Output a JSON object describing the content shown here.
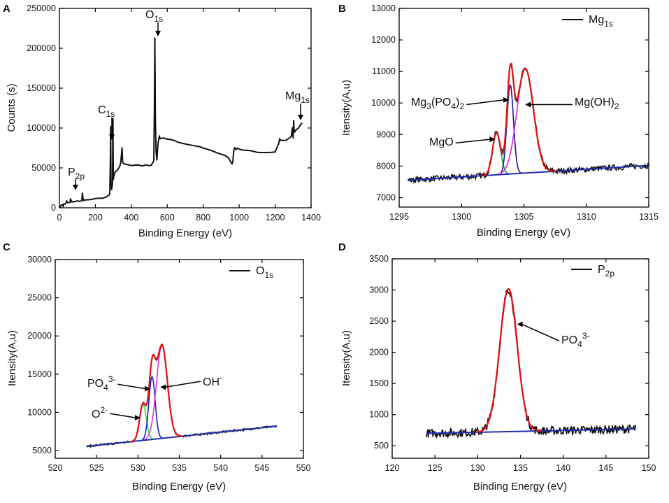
{
  "figure": {
    "panel_count": 4
  },
  "colors": {
    "raw": "#111111",
    "envelope": "#e01010",
    "background": "#1f2fb0",
    "mgo": "#18b018",
    "mg3po42": "#141c9a",
    "mgoh2": "#e020e0",
    "o2": "#30e030",
    "po4_o": "#1420c8",
    "oh": "#ec2cec",
    "arrow": "#000000"
  },
  "chart_data": [
    {
      "panel": "A",
      "type": "line",
      "xlabel": "Binding Energy (eV)",
      "ylabel": "Counts (s)",
      "xlim": [
        0,
        1400
      ],
      "ylim": [
        0,
        250000
      ],
      "xticks": [
        0,
        200,
        400,
        600,
        800,
        1000,
        1200,
        1400
      ],
      "yticks": [
        0,
        50000,
        100000,
        150000,
        200000,
        250000
      ],
      "series": [
        {
          "name": "survey",
          "color": "#111111",
          "x": [
            0,
            10,
            20,
            21,
            25,
            35,
            40,
            45,
            60,
            61,
            70,
            90,
            100,
            110,
            125,
            128,
            132,
            135,
            140,
            180,
            200,
            220,
            240,
            260,
            270,
            280,
            283,
            285,
            287,
            290,
            295,
            298,
            300,
            302,
            305,
            310,
            320,
            330,
            340,
            345,
            348,
            350,
            352,
            356,
            360,
            380,
            400,
            420,
            440,
            460,
            480,
            500,
            510,
            520,
            525,
            528,
            531,
            534,
            538,
            542,
            548,
            552,
            556,
            560,
            580,
            600,
            620,
            640,
            660,
            680,
            700,
            740,
            780,
            800,
            840,
            880,
            900,
            920,
            940,
            960,
            965,
            970,
            975,
            980,
            985,
            990,
            1000,
            1020,
            1060,
            1100,
            1140,
            1180,
            1200,
            1210,
            1220,
            1225,
            1230,
            1260,
            1280,
            1290,
            1296,
            1300,
            1303,
            1306,
            1310,
            1315,
            1330,
            1350
          ],
          "y": [
            1000,
            2500,
            4500,
            2000,
            4500,
            5000,
            9000,
            6000,
            6500,
            11000,
            7000,
            7800,
            8200,
            8500,
            9000,
            18000,
            10500,
            9500,
            9500,
            10500,
            11000,
            11500,
            12500,
            13500,
            14500,
            16500,
            55000,
            102000,
            30000,
            22000,
            30000,
            112000,
            35000,
            39000,
            42000,
            45000,
            47000,
            50000,
            54000,
            66000,
            75000,
            66000,
            58000,
            56000,
            55000,
            54000,
            53000,
            54000,
            53000,
            53000,
            54000,
            53000,
            53000,
            56000,
            59000,
            120000,
            213000,
            110000,
            70000,
            60000,
            80000,
            85000,
            90000,
            87000,
            87000,
            86000,
            85000,
            84000,
            82000,
            81000,
            80000,
            78000,
            76000,
            75000,
            72000,
            69000,
            67000,
            66000,
            63000,
            55000,
            58000,
            71000,
            76000,
            73000,
            74000,
            75000,
            74000,
            73000,
            71000,
            70000,
            69000,
            70000,
            70000,
            75000,
            81000,
            86000,
            84000,
            84000,
            87000,
            89000,
            100000,
            88000,
            110000,
            95000,
            96000,
            98000,
            100000,
            107000
          ]
        }
      ],
      "annotations": [
        {
          "label": "P",
          "sub": "2p",
          "x": 90
        },
        {
          "label": "C",
          "sub": "1s",
          "x": 285
        },
        {
          "label": "O",
          "sub": "1s",
          "x": 531
        },
        {
          "label": "Mg",
          "sub": "1s",
          "x": 1303
        }
      ]
    },
    {
      "panel": "B",
      "type": "line",
      "xlabel": "Binding Energy (eV)",
      "ylabel": "Itensity(A,u)",
      "xlim": [
        1295,
        1315
      ],
      "ylim": [
        6700,
        13000
      ],
      "xticks": [
        1295,
        1300,
        1305,
        1310,
        1315
      ],
      "yticks": [
        7000,
        8000,
        9000,
        10000,
        11000,
        12000,
        13000
      ],
      "legend": {
        "position": "top-right",
        "label": "Mg",
        "sub": "1s"
      },
      "baseline": {
        "x": [
          1295.7,
          1315
        ],
        "y": [
          7550,
          8020
        ]
      },
      "peaks": [
        {
          "name": "MgO",
          "center": 1302.8,
          "fwhm": 0.75,
          "height": 1330,
          "color": "#18b018"
        },
        {
          "name": "Mg3(PO4)2",
          "center": 1303.9,
          "fwhm": 0.62,
          "height": 2820,
          "color": "#141c9a"
        },
        {
          "name": "Mg(OH)2",
          "center": 1305.1,
          "fwhm": 1.55,
          "height": 3320,
          "color": "#e020e0"
        }
      ],
      "envelope_color": "#e01010",
      "background_color": "#1f2fb0",
      "noise": 90,
      "labels": [
        {
          "parts": [
            [
              "MgO",
              ""
            ]
          ],
          "arrow_to": [
            1302.7,
            8850
          ]
        },
        {
          "parts": [
            [
              "Mg",
              ""
            ],
            [
              "3",
              "sub"
            ],
            [
              "(PO",
              ""
            ],
            [
              "4",
              "sub"
            ],
            [
              ")",
              ""
            ],
            [
              "2",
              "sub"
            ]
          ],
          "arrow_to": [
            1303.8,
            10100
          ]
        },
        {
          "parts": [
            [
              "Mg(OH)",
              ""
            ],
            [
              "2",
              "sub"
            ]
          ],
          "arrow_to": [
            1305.1,
            9950
          ]
        }
      ]
    },
    {
      "panel": "C",
      "type": "line",
      "xlabel": "Binding Energy (eV)",
      "ylabel": "Itensity(A,u)",
      "xlim": [
        520,
        550
      ],
      "ylim": [
        4000,
        30000
      ],
      "xticks": [
        520,
        525,
        530,
        535,
        540,
        545,
        550
      ],
      "yticks": [
        5000,
        10000,
        15000,
        20000,
        25000,
        30000
      ],
      "legend": {
        "position": "top-right",
        "label": "O",
        "sub": "1s"
      },
      "baseline": {
        "x": [
          523.8,
          546.8
        ],
        "y": [
          5550,
          8200
        ]
      },
      "peaks": [
        {
          "name": "O2-",
          "center": 530.6,
          "fwhm": 0.95,
          "height": 4700,
          "color": "#30e030"
        },
        {
          "name": "PO4 3-",
          "center": 531.7,
          "fwhm": 0.9,
          "height": 8200,
          "color": "#1420c8"
        },
        {
          "name": "OH-",
          "center": 532.9,
          "fwhm": 1.55,
          "height": 12200,
          "color": "#ec2cec"
        }
      ],
      "envelope_color": "#e01010",
      "background_color": "#1f2fb0",
      "noise": 120,
      "labels": [
        {
          "parts": [
            [
              "O",
              ""
            ],
            [
              "2-",
              "sup"
            ]
          ],
          "arrow_to": [
            530.3,
            9300
          ]
        },
        {
          "parts": [
            [
              "PO",
              ""
            ],
            [
              "4",
              "sub"
            ],
            [
              "3-",
              "sup"
            ]
          ],
          "arrow_to": [
            531.5,
            13100
          ]
        },
        {
          "parts": [
            [
              "OH",
              ""
            ],
            [
              "-",
              "sup"
            ]
          ],
          "arrow_to": [
            532.7,
            13300
          ]
        }
      ]
    },
    {
      "panel": "D",
      "type": "line",
      "xlabel": "Binding Energy (eV)",
      "ylabel": "Itensity(A,u)",
      "xlim": [
        120,
        150
      ],
      "ylim": [
        300,
        3500
      ],
      "xticks": [
        120,
        125,
        130,
        135,
        140,
        145,
        150
      ],
      "yticks": [
        500,
        1000,
        1500,
        2000,
        2500,
        3000,
        3500
      ],
      "legend": {
        "position": "top-right",
        "label": "P",
        "sub": "2p"
      },
      "baseline": {
        "x": [
          124,
          148.5
        ],
        "y": [
          700,
          770
        ]
      },
      "peaks": [
        {
          "name": "PO4 3-",
          "center": 133.6,
          "fwhm": 2.4,
          "height": 2290,
          "color": "#e01010"
        }
      ],
      "envelope_color": "#e01010",
      "background_color": "#1f2fb0",
      "noise": 70,
      "labels": [
        {
          "parts": [
            [
              "PO",
              ""
            ],
            [
              "4",
              "sub"
            ],
            [
              "3-",
              "sup"
            ]
          ],
          "arrow_to": [
            134.6,
            2450
          ]
        }
      ]
    }
  ]
}
